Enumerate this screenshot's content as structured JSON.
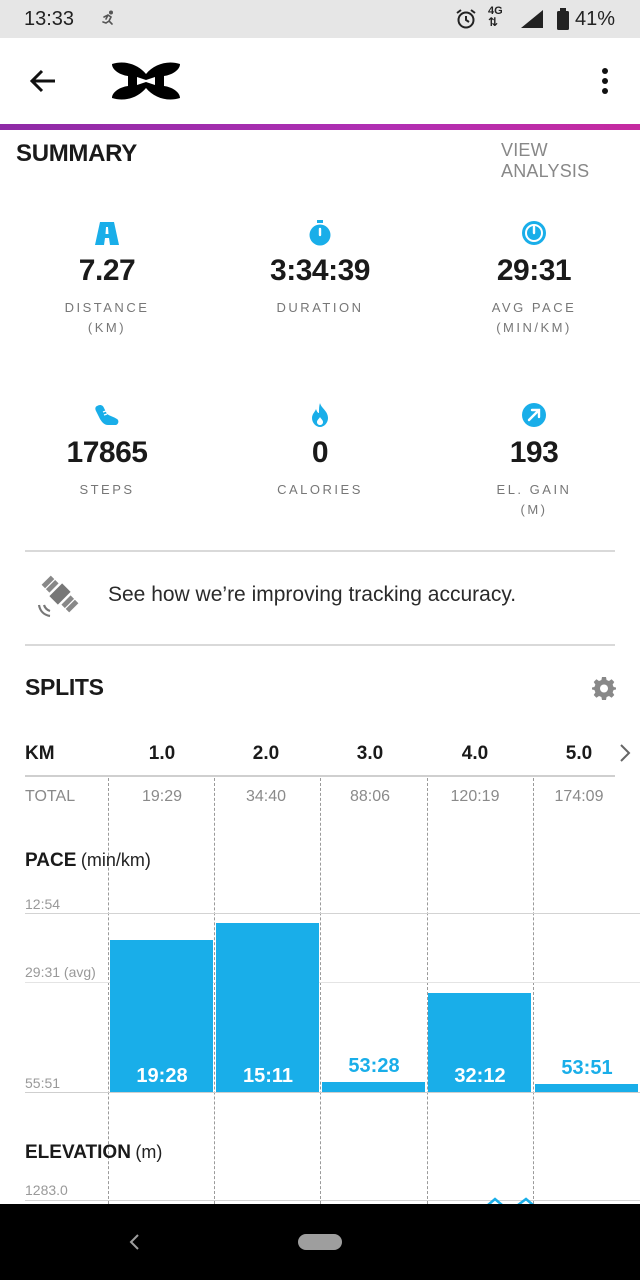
{
  "status_bar": {
    "time": "13:33",
    "network": "4G",
    "battery_pct": "41%"
  },
  "header": {
    "logo_icon": "under-armour-logo",
    "back_icon": "arrow-left-icon",
    "more_icon": "more-vertical-icon"
  },
  "summary": {
    "title": "SUMMARY",
    "view_analysis": "VIEW ANALYSIS",
    "stats": [
      {
        "icon": "road-icon",
        "value": "7.27",
        "label": "DISTANCE",
        "unit": "(KM)"
      },
      {
        "icon": "stopwatch-icon",
        "value": "3:34:39",
        "label": "DURATION",
        "unit": ""
      },
      {
        "icon": "pace-gauge-icon",
        "value": "29:31",
        "label": "AVG PACE",
        "unit": "(MIN/KM)"
      },
      {
        "icon": "shoe-icon",
        "value": "17865",
        "label": "STEPS",
        "unit": ""
      },
      {
        "icon": "flame-icon",
        "value": "0",
        "label": "CALORIES",
        "unit": ""
      },
      {
        "icon": "elevation-arrow-icon",
        "value": "193",
        "label": "EL. GAIN",
        "unit": "(M)"
      }
    ]
  },
  "tracking": {
    "icon": "satellite-icon",
    "text": "See how we’re improving tracking accuracy."
  },
  "splits": {
    "title": "SPLITS",
    "settings_icon": "gear-icon",
    "km_label": "KM",
    "total_label": "TOTAL",
    "next_icon": "chevron-right-icon",
    "columns": [
      {
        "km": "1.0",
        "total": "19:29"
      },
      {
        "km": "2.0",
        "total": "34:40"
      },
      {
        "km": "3.0",
        "total": "88:06"
      },
      {
        "km": "4.0",
        "total": "120:19"
      },
      {
        "km": "5.0",
        "total": "174:09"
      }
    ]
  },
  "pace_chart": {
    "title": "PACE",
    "unit": "(min/km)",
    "top_label": "12:54",
    "avg_label": "29:31 (avg)",
    "bottom_label": "55:51",
    "bar_color": "#19aee9"
  },
  "elevation": {
    "title": "ELEVATION",
    "unit": "(m)",
    "top_label": "1283.0"
  },
  "chart_data": {
    "type": "bar",
    "categories": [
      "1.0",
      "2.0",
      "3.0",
      "4.0",
      "5.0"
    ],
    "values": [
      "19:28",
      "15:11",
      "53:28",
      "32:12",
      "53:51"
    ],
    "values_seconds": [
      1168,
      911,
      3208,
      1932,
      3231
    ],
    "ylabel": "PACE (min/km)",
    "ylim_seconds": [
      3351,
      774
    ],
    "y_ticks": [
      "12:54",
      "29:31 (avg)",
      "55:51"
    ],
    "avg_seconds": 1771,
    "inverted_axis": true
  },
  "nav": {
    "back_icon": "nav-back-icon",
    "home_icon": "home-pill-icon"
  }
}
